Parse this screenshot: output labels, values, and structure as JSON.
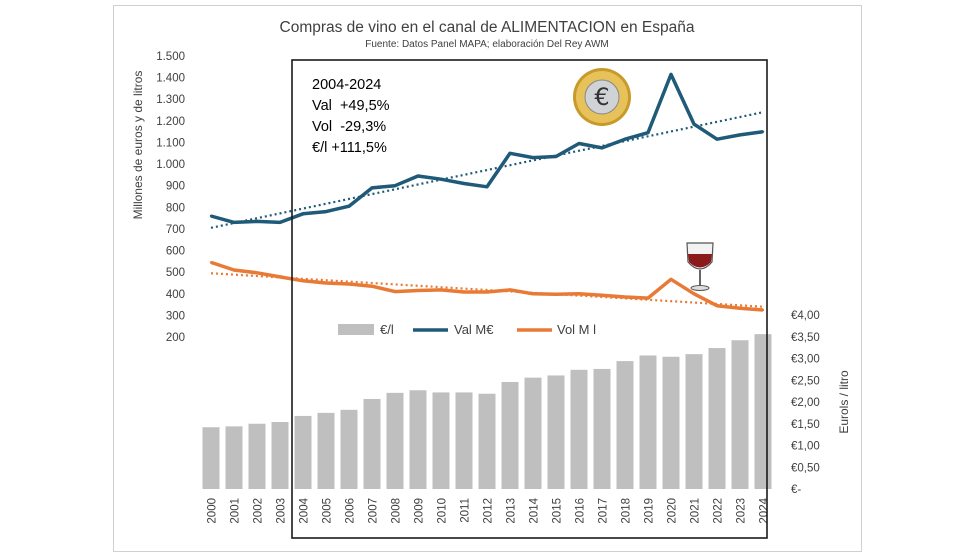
{
  "chart_data": {
    "type": "bar+line",
    "title": "Compras de vino en el canal de ALIMENTACION en España",
    "subtitle": "Fuente: Datos Panel MAPA; elaboración Del Rey AWM",
    "categories": [
      "2000",
      "2001",
      "2002",
      "2003",
      "2004",
      "2005",
      "2006",
      "2007",
      "2008",
      "2009",
      "2010",
      "2011",
      "2012",
      "2013",
      "2014",
      "2015",
      "2016",
      "2017",
      "2018",
      "2019",
      "2020",
      "2021",
      "2022",
      "2023",
      "2024"
    ],
    "series": [
      {
        "name": "€/l",
        "type": "bar",
        "axis": "right",
        "color": "#bfbfbf",
        "values": [
          1.42,
          1.44,
          1.5,
          1.54,
          1.68,
          1.75,
          1.82,
          2.07,
          2.21,
          2.27,
          2.22,
          2.22,
          2.19,
          2.46,
          2.56,
          2.61,
          2.74,
          2.76,
          2.94,
          3.07,
          3.04,
          3.1,
          3.24,
          3.42,
          3.56
        ]
      },
      {
        "name": "Val M€",
        "type": "line",
        "axis": "left",
        "color": "#1f5a78",
        "values": [
          760,
          730,
          735,
          730,
          770,
          780,
          805,
          890,
          900,
          945,
          930,
          910,
          895,
          1050,
          1030,
          1035,
          1095,
          1075,
          1115,
          1145,
          1415,
          1185,
          1115,
          1135,
          1150
        ]
      },
      {
        "name": "Vol M l",
        "type": "line",
        "axis": "left",
        "color": "#e87a35",
        "values": [
          545,
          510,
          497,
          478,
          460,
          450,
          445,
          435,
          410,
          415,
          418,
          408,
          408,
          418,
          400,
          398,
          400,
          393,
          385,
          380,
          467,
          400,
          345,
          333,
          325
        ]
      }
    ],
    "trendlines": [
      {
        "series": "Val M€",
        "start": 705,
        "end": 1240,
        "color": "#1f5a78"
      },
      {
        "series": "Vol M l",
        "start": 495,
        "end": 340,
        "color": "#e87a35"
      }
    ],
    "left_axis": {
      "label": "Millones de euros y de litros",
      "ylim": [
        0,
        1500
      ],
      "ticks": [
        "200",
        "300",
        "400",
        "500",
        "600",
        "700",
        "800",
        "900",
        "1.000",
        "1.100",
        "1.200",
        "1.300",
        "1.400",
        "1.500"
      ],
      "tick_values": [
        200,
        300,
        400,
        500,
        600,
        700,
        800,
        900,
        1000,
        1100,
        1200,
        1300,
        1400,
        1500
      ]
    },
    "right_axis": {
      "label": "Eurols / litro",
      "ylim": [
        0,
        4
      ],
      "ticks": [
        "€-",
        "€0,50",
        "€1,00",
        "€1,50",
        "€2,00",
        "€2,50",
        "€3,00",
        "€3,50",
        "€4,00"
      ],
      "tick_values": [
        0,
        0.5,
        1,
        1.5,
        2,
        2.5,
        3,
        3.5,
        4
      ]
    },
    "legend": [
      "€/l",
      "Val M€",
      "Vol M l"
    ],
    "annotation": {
      "period": "2004-2024",
      "lines": [
        "Val  +49,5%",
        "Vol  -29,3%",
        "€/l +111,5%"
      ],
      "highlight_range": [
        "2004",
        "2024"
      ]
    },
    "colors": {
      "bar": "#bfbfbf",
      "val": "#1f5a78",
      "vol": "#e87a35",
      "gold": "#d4a017"
    },
    "icons": {
      "coin": "euro-coin-icon",
      "glass": "wine-glass-icon"
    }
  }
}
